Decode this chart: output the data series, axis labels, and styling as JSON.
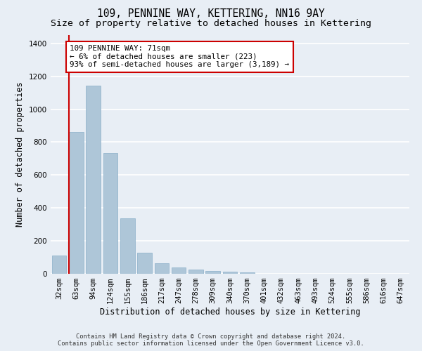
{
  "title": "109, PENNINE WAY, KETTERING, NN16 9AY",
  "subtitle": "Size of property relative to detached houses in Kettering",
  "xlabel": "Distribution of detached houses by size in Kettering",
  "ylabel": "Number of detached properties",
  "categories": [
    "32sqm",
    "63sqm",
    "94sqm",
    "124sqm",
    "155sqm",
    "186sqm",
    "217sqm",
    "247sqm",
    "278sqm",
    "309sqm",
    "340sqm",
    "370sqm",
    "401sqm",
    "432sqm",
    "463sqm",
    "493sqm",
    "524sqm",
    "555sqm",
    "586sqm",
    "616sqm",
    "647sqm"
  ],
  "values": [
    110,
    860,
    1145,
    735,
    335,
    130,
    63,
    37,
    25,
    18,
    13,
    8,
    0,
    0,
    0,
    0,
    0,
    0,
    0,
    0,
    0
  ],
  "bar_color": "#aec6d8",
  "bar_edgecolor": "#8aafc8",
  "background_color": "#e8eef5",
  "grid_color": "#ffffff",
  "annotation_text": "109 PENNINE WAY: 71sqm\n← 6% of detached houses are smaller (223)\n93% of semi-detached houses are larger (3,189) →",
  "annotation_box_color": "#ffffff",
  "annotation_box_edgecolor": "#cc0000",
  "vline_color": "#cc0000",
  "ylim": [
    0,
    1450
  ],
  "yticks": [
    0,
    200,
    400,
    600,
    800,
    1000,
    1200,
    1400
  ],
  "footer_line1": "Contains HM Land Registry data © Crown copyright and database right 2024.",
  "footer_line2": "Contains public sector information licensed under the Open Government Licence v3.0.",
  "title_fontsize": 10.5,
  "subtitle_fontsize": 9.5,
  "tick_fontsize": 7.5,
  "ylabel_fontsize": 8.5,
  "xlabel_fontsize": 8.5
}
